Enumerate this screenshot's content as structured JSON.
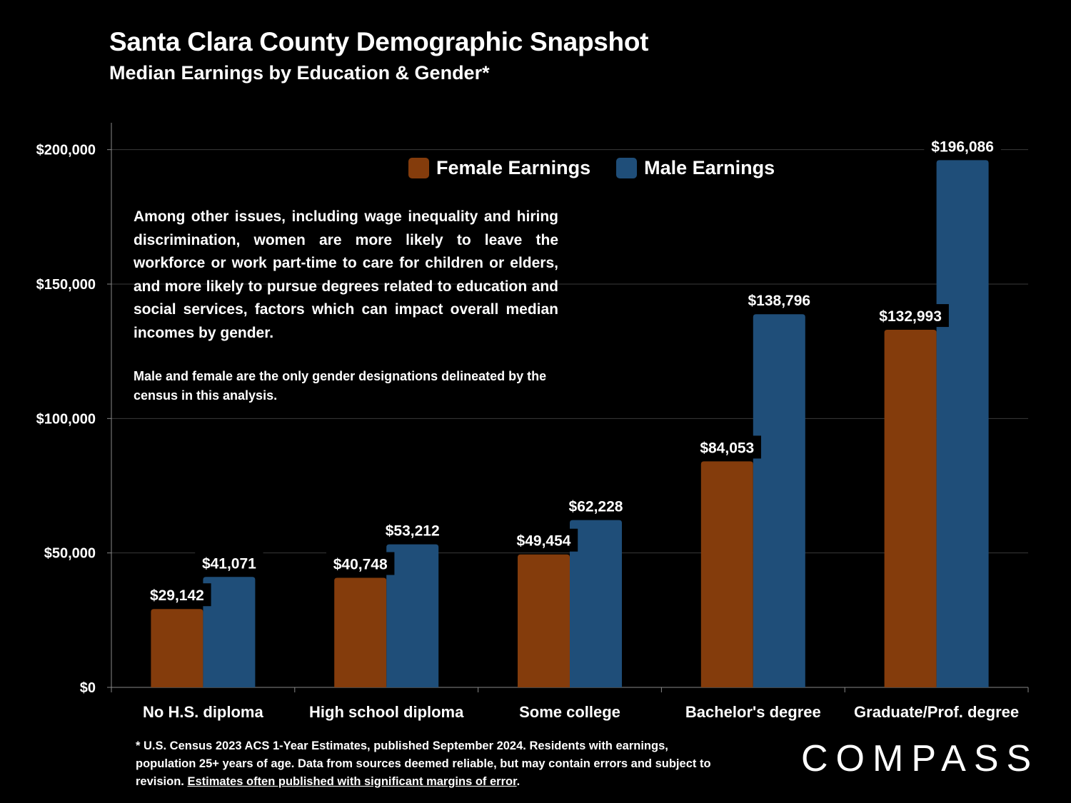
{
  "header": {
    "title": "Santa Clara County Demographic Snapshot",
    "subtitle": "Median Earnings by Education & Gender*"
  },
  "legend": {
    "female_label": "Female Earnings",
    "male_label": "Male Earnings"
  },
  "colors": {
    "female": "#843c0c",
    "male": "#1f4e79",
    "background": "#000000",
    "gridline": "#3a3a3a"
  },
  "annotation": {
    "main": "Among other issues, including wage inequality and hiring discrimination, women are more likely to leave the workforce or work part-time to care for children or elders, and more likely to pursue degrees related to education and social services, factors which can impact overall median incomes by gender.",
    "secondary": "Male and female are the only gender designations delineated by the census in this analysis."
  },
  "footnote": {
    "text": "* U.S. Census 2023 ACS 1-Year Estimates, published September 2024. Residents with earnings, population 25+ years of age. Data from sources deemed reliable, but may contain errors and subject to revision. ",
    "underlined": "Estimates often published with significant margins of error",
    "end": "."
  },
  "logo": "COMPASS",
  "chart_data": {
    "type": "bar",
    "categories": [
      "No H.S. diploma",
      "High school diploma",
      "Some college",
      "Bachelor's degree",
      "Graduate/Prof. degree"
    ],
    "series": [
      {
        "name": "Female Earnings",
        "values": [
          29142,
          40748,
          49454,
          84053,
          132993
        ],
        "labels": [
          "$29,142",
          "$40,748",
          "$49,454",
          "$84,053",
          "$132,993"
        ]
      },
      {
        "name": "Male Earnings",
        "values": [
          41071,
          53212,
          62228,
          138796,
          196086
        ],
        "labels": [
          "$41,071",
          "$53,212",
          "$62,228",
          "$138,796",
          "$196,086"
        ]
      }
    ],
    "ylim": [
      0,
      210000
    ],
    "yticks": [
      0,
      50000,
      100000,
      150000,
      200000
    ],
    "ytick_labels": [
      "$0",
      "$50,000",
      "$100,000",
      "$150,000",
      "$200,000"
    ],
    "grid": true,
    "legend_position": "top-center"
  }
}
